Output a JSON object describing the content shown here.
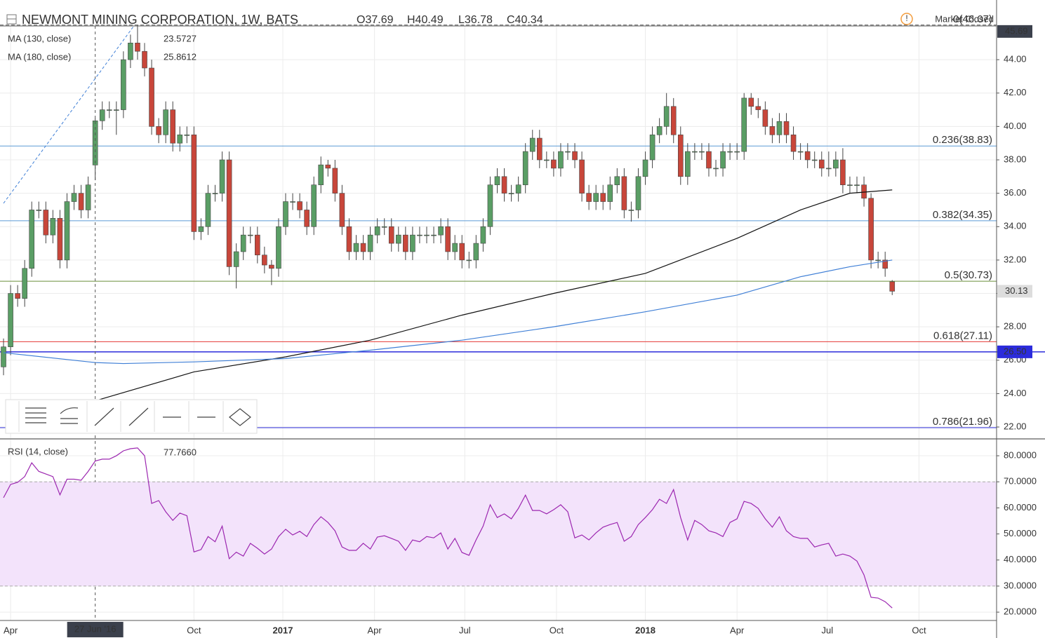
{
  "chart_data": [
    {
      "type": "candlestick",
      "title": "NEWMONT MINING CORPORATION, 1W, BATS",
      "ohlc_legend": [
        "O37.69",
        "H40.49",
        "L36.78",
        "C40.34"
      ],
      "status": "Market Closed",
      "crosshair": {
        "x": 13,
        "label": "27 Jun '16"
      },
      "up_color": "#5a9e65",
      "down_color": "#c8463a",
      "candles": [
        [
          25.6,
          27.3,
          25.1,
          26.8
        ],
        [
          26.8,
          30.5,
          26.3,
          30
        ],
        [
          30,
          30.5,
          29.2,
          29.7
        ],
        [
          29.7,
          32,
          29.2,
          31.5
        ],
        [
          31.5,
          35.5,
          31,
          35
        ],
        [
          35,
          35.5,
          34.5,
          35
        ],
        [
          35,
          35.5,
          33,
          33.5
        ],
        [
          33.5,
          35,
          33,
          34.5
        ],
        [
          34.5,
          35,
          31.5,
          32
        ],
        [
          32,
          36,
          31.5,
          35.5
        ],
        [
          35.5,
          36.5,
          35,
          36
        ],
        [
          36,
          36.5,
          34.5,
          35
        ],
        [
          35,
          37,
          34.5,
          36.5
        ],
        [
          37.69,
          40.49,
          36.78,
          40.34
        ],
        [
          40.34,
          41.5,
          39.8,
          41
        ],
        [
          41,
          41.5,
          40.5,
          41
        ],
        [
          41,
          41.5,
          39.5,
          41
        ],
        [
          41,
          44.5,
          40.5,
          44
        ],
        [
          44,
          45.5,
          43.5,
          45
        ],
        [
          45,
          46.07,
          44,
          44.5
        ],
        [
          44.5,
          45,
          43,
          43.5
        ],
        [
          43.5,
          44,
          39.5,
          40
        ],
        [
          40,
          40.5,
          39,
          39.5
        ],
        [
          39.5,
          41.5,
          39,
          41
        ],
        [
          41,
          41.5,
          38.5,
          39
        ],
        [
          39,
          40,
          38.5,
          39.5
        ],
        [
          39.5,
          40,
          39,
          39.5
        ],
        [
          39.5,
          40,
          33.2,
          33.7
        ],
        [
          33.7,
          34.5,
          33.2,
          34
        ],
        [
          34,
          36.5,
          33.5,
          36
        ],
        [
          36,
          36.5,
          35.5,
          36
        ],
        [
          36,
          38.5,
          35.5,
          38
        ],
        [
          38,
          38.5,
          31.1,
          31.6
        ],
        [
          31.6,
          33,
          30.3,
          32.5
        ],
        [
          32.5,
          34,
          32,
          33.5
        ],
        [
          33.5,
          34,
          33,
          33.5
        ],
        [
          33.5,
          34,
          31.8,
          32.3
        ],
        [
          32.3,
          32.8,
          31.2,
          31.7
        ],
        [
          31.7,
          32,
          30.5,
          31.5
        ],
        [
          31.5,
          34.5,
          31,
          34
        ],
        [
          34,
          36,
          33.5,
          35.5
        ],
        [
          35.5,
          36,
          35,
          35.5
        ],
        [
          35.5,
          36,
          34.5,
          35
        ],
        [
          35,
          35.5,
          33.5,
          34
        ],
        [
          34,
          37,
          33.5,
          36.5
        ],
        [
          36.5,
          38.2,
          36,
          37.7
        ],
        [
          37.7,
          38,
          37,
          37.5
        ],
        [
          37.5,
          38,
          35.5,
          36
        ],
        [
          36,
          36.5,
          33.5,
          34
        ],
        [
          34,
          34.5,
          32,
          32.5
        ],
        [
          32.5,
          33.5,
          32,
          33
        ],
        [
          33,
          33.5,
          32,
          32.5
        ],
        [
          32.5,
          34,
          32,
          33.5
        ],
        [
          33.5,
          34.5,
          33,
          34
        ],
        [
          34,
          34.5,
          33.5,
          34
        ],
        [
          34,
          34.5,
          32.5,
          33
        ],
        [
          33,
          34,
          32.5,
          33.5
        ],
        [
          33.5,
          34,
          32,
          32.5
        ],
        [
          32.5,
          34,
          32,
          33.5
        ],
        [
          33.5,
          34,
          33,
          33.5
        ],
        [
          33.5,
          34,
          33,
          33.5
        ],
        [
          33.5,
          34,
          33,
          33.5
        ],
        [
          33.5,
          34.5,
          33,
          34
        ],
        [
          34,
          34.5,
          32,
          32.5
        ],
        [
          32.5,
          33.5,
          32,
          33
        ],
        [
          33,
          33.5,
          31.5,
          32
        ],
        [
          32,
          32.5,
          31.5,
          32
        ],
        [
          32,
          33.5,
          31.5,
          33
        ],
        [
          33,
          34.5,
          32.5,
          34
        ],
        [
          34,
          37,
          33.5,
          36.5
        ],
        [
          36.5,
          37.5,
          36,
          37
        ],
        [
          37,
          37.5,
          35.5,
          36
        ],
        [
          36,
          36.5,
          35.5,
          36
        ],
        [
          36,
          37,
          35.5,
          36.5
        ],
        [
          36.5,
          39,
          36,
          38.5
        ],
        [
          38.5,
          39.8,
          38,
          39.3
        ],
        [
          39.3,
          39.8,
          37.5,
          38
        ],
        [
          38,
          38.5,
          37.5,
          38
        ],
        [
          38,
          38.5,
          37,
          37.5
        ],
        [
          37.5,
          39,
          37,
          38.5
        ],
        [
          38.5,
          39,
          38,
          38.5
        ],
        [
          38.5,
          39,
          37.5,
          38
        ],
        [
          38,
          38.5,
          35.5,
          36
        ],
        [
          36,
          36.5,
          35,
          35.5
        ],
        [
          35.5,
          36.5,
          35,
          36
        ],
        [
          36,
          36.5,
          35,
          35.5
        ],
        [
          35.5,
          37,
          35,
          36.5
        ],
        [
          36.5,
          37.5,
          36,
          37
        ],
        [
          37,
          37.5,
          34.5,
          35
        ],
        [
          35,
          35.5,
          34.3,
          35
        ],
        [
          35,
          37.5,
          34.5,
          37
        ],
        [
          37,
          38.5,
          36.5,
          38
        ],
        [
          38,
          40,
          37.5,
          39.5
        ],
        [
          39.5,
          40.5,
          39,
          40
        ],
        [
          40,
          42,
          39.5,
          41.2
        ],
        [
          41.2,
          41.7,
          39,
          39.5
        ],
        [
          39.5,
          40,
          36.5,
          37
        ],
        [
          37,
          39,
          36.5,
          38.5
        ],
        [
          38.5,
          39,
          38,
          38.5
        ],
        [
          38.5,
          39,
          38,
          38.5
        ],
        [
          38.5,
          39,
          37,
          37.5
        ],
        [
          37.5,
          38,
          37,
          37.5
        ],
        [
          37.5,
          39,
          37,
          38.5
        ],
        [
          38.5,
          39,
          38,
          38.5
        ],
        [
          38.5,
          39,
          38,
          38.5
        ],
        [
          38.5,
          42,
          38,
          41.7
        ],
        [
          41.7,
          42,
          40.7,
          41.2
        ],
        [
          41.2,
          41.7,
          40.5,
          41
        ],
        [
          41,
          41.5,
          39.5,
          40
        ],
        [
          40,
          40.5,
          39,
          39.5
        ],
        [
          39.5,
          40.8,
          39,
          40.3
        ],
        [
          40.3,
          40.8,
          39,
          39.5
        ],
        [
          39.5,
          40,
          38,
          38.5
        ],
        [
          38.5,
          39,
          38,
          38.5
        ],
        [
          38.5,
          39,
          37.5,
          38
        ],
        [
          38,
          38.5,
          37.5,
          38
        ],
        [
          38,
          38.5,
          37,
          37.5
        ],
        [
          37.5,
          38.5,
          37,
          37.5
        ],
        [
          37.5,
          38.5,
          37,
          38
        ],
        [
          38,
          38.7,
          36,
          36.5
        ],
        [
          36.5,
          37,
          36,
          36.5
        ],
        [
          36.5,
          37,
          36,
          36.5
        ],
        [
          36.5,
          37,
          35.2,
          35.7
        ],
        [
          35.7,
          36,
          31.5,
          32
        ],
        [
          32,
          32.5,
          31.5,
          32
        ],
        [
          32,
          32.5,
          31,
          31.5
        ],
        [
          30.7,
          30.8,
          29.9,
          30.13
        ]
      ],
      "xlim": [
        -0.5,
        140.8
      ],
      "xticks": [
        {
          "value": 1,
          "label": "Apr"
        },
        {
          "value": 27,
          "label": "Oct"
        },
        {
          "value": 39.6,
          "label": "2017"
        },
        {
          "value": 52.6,
          "label": "Apr"
        },
        {
          "value": 65.4,
          "label": "Jul"
        },
        {
          "value": 78.4,
          "label": "Oct"
        },
        {
          "value": 91,
          "label": "2018"
        },
        {
          "value": 104,
          "label": "Apr"
        },
        {
          "value": 116.8,
          "label": "Jul"
        },
        {
          "value": 129.8,
          "label": "Oct"
        }
      ],
      "ylim": [
        21.33,
        46.02
      ],
      "yticks": [
        {
          "value": 22,
          "label": "22.00"
        },
        {
          "value": 24,
          "label": "24.00"
        },
        {
          "value": 26,
          "label": "26.00"
        },
        {
          "value": 28,
          "label": "28.00"
        },
        {
          "value": 30,
          "label": "30.00"
        },
        {
          "value": 32,
          "label": "32.00"
        },
        {
          "value": 34,
          "label": "34.00"
        },
        {
          "value": 36,
          "label": "36.00"
        },
        {
          "value": 38,
          "label": "38.00"
        },
        {
          "value": 40,
          "label": "40.00"
        },
        {
          "value": 42,
          "label": "42.00"
        },
        {
          "value": 44,
          "label": "44.00"
        }
      ],
      "grid": true,
      "series": [
        {
          "name": "MA (130, close)",
          "legend_value": "23.5727",
          "color": "#111111",
          "x": [
            13,
            27,
            40,
            52,
            65,
            78,
            91,
            104,
            113,
            120,
            126
          ],
          "values": [
            23.57,
            25.3,
            26.2,
            27.2,
            28.7,
            30.0,
            31.2,
            33.3,
            35.0,
            36.0,
            36.2
          ]
        },
        {
          "name": "MA (180, close)",
          "legend_value": "25.8612",
          "color": "#3f7fd6",
          "x": [
            0,
            13,
            17,
            27,
            40,
            52,
            65,
            78,
            91,
            104,
            113,
            120,
            126
          ],
          "values": [
            26.45,
            25.86,
            25.8,
            25.9,
            26.1,
            26.6,
            27.2,
            28.0,
            28.9,
            29.9,
            31.0,
            31.6,
            32.0
          ]
        }
      ],
      "fib_levels": [
        {
          "label": "0(46.07)",
          "value": 46.07,
          "color": "#555555"
        },
        {
          "label": "0.236(38.83)",
          "value": 38.83,
          "color": "#5b9bd5"
        },
        {
          "label": "0.382(34.35)",
          "value": 34.35,
          "color": "#5b9bd5"
        },
        {
          "label": "0.5(30.73)",
          "value": 30.73,
          "color": "#6a8f3a"
        },
        {
          "label": "0.618(27.11)",
          "value": 27.11,
          "color": "#e53935"
        },
        {
          "label": "0.786(21.96)",
          "value": 21.96,
          "color": "#2b2bdc"
        }
      ],
      "horizontal_line": {
        "value": 26.5,
        "label": "26.50",
        "color": "#2b2bdc"
      },
      "price_tags": [
        {
          "value": 45.69,
          "color": "#3b404c",
          "text_color": "#ffffff"
        },
        {
          "value": 30.13,
          "color": "#dddddd",
          "text_color": "#222222"
        }
      ]
    },
    {
      "type": "line",
      "name": "RSI (14, close)",
      "legend_value": "77.7660",
      "color": "#9c27b0",
      "values": [
        63.9,
        69,
        69.8,
        72,
        77.3,
        74,
        73,
        72,
        65,
        71,
        71,
        70.6,
        74,
        78,
        78.7,
        78.7,
        80,
        81.9,
        82.7,
        83,
        80,
        61.7,
        62.8,
        58.5,
        55.2,
        58,
        57,
        43.1,
        44,
        49,
        47,
        53,
        40.5,
        43,
        41.5,
        46.4,
        44.5,
        42.3,
        44.2,
        49,
        51.8,
        49.6,
        51,
        49,
        53.6,
        56.6,
        54.4,
        51.2,
        45,
        43.7,
        43.7,
        46.4,
        44.2,
        48.8,
        49.3,
        48.3,
        47.2,
        43.7,
        47.7,
        47,
        49,
        48.5,
        50.4,
        44.2,
        48.3,
        42.9,
        41.8,
        47.7,
        53,
        61.2,
        56.3,
        57.7,
        55.8,
        59.8,
        64.9,
        59,
        59,
        57.7,
        59.3,
        61.2,
        58.5,
        48.5,
        49.6,
        47.7,
        50.4,
        52.6,
        53.6,
        54.4,
        47.2,
        49,
        53.6,
        56.3,
        59.3,
        63.3,
        61.7,
        67,
        56.3,
        47.7,
        55.2,
        53.6,
        51.2,
        50.4,
        49,
        54.4,
        55.8,
        62.5,
        61.7,
        59.8,
        55.8,
        52.6,
        56.6,
        51.2,
        49,
        48.3,
        48.3,
        45,
        45.8,
        46.4,
        41.5,
        42.3,
        41.5,
        39.6,
        34.3,
        25.7,
        25.4,
        24,
        21.6
      ],
      "ylim": [
        16.8,
        86.2
      ],
      "yticks": [
        {
          "value": 20,
          "label": "20.0000"
        },
        {
          "value": 30,
          "label": "30.0000"
        },
        {
          "value": 40,
          "label": "40.0000"
        },
        {
          "value": 50,
          "label": "50.0000"
        },
        {
          "value": 60,
          "label": "60.0000"
        },
        {
          "value": 70,
          "label": "70.0000"
        },
        {
          "value": 80,
          "label": "80.0000"
        }
      ],
      "band": [
        30,
        70
      ],
      "band_color": "#f3e3fb"
    }
  ]
}
